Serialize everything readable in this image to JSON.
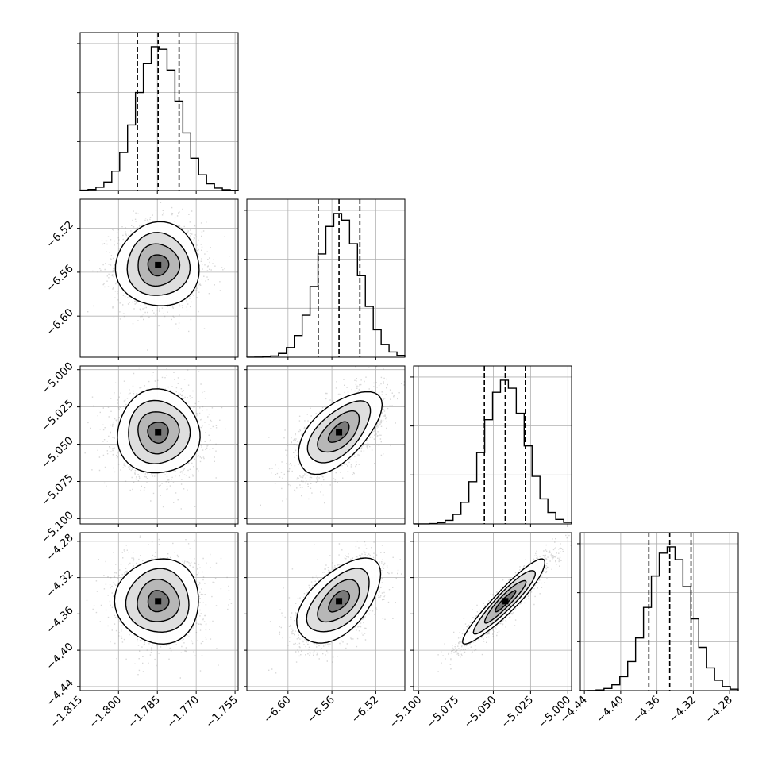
{
  "chart_data": {
    "type": "corner",
    "title": "",
    "grid": true,
    "parameters": [
      {
        "label": "",
        "range": [
          -1.8148,
          -1.7538
        ],
        "ticks": [
          "-1.815",
          "-1.800",
          "-1.785",
          "-1.770",
          "-1.755"
        ],
        "median": -1.7847,
        "q16": -1.7927,
        "q84": -1.7766,
        "std": 0.0081
      },
      {
        "label": "",
        "range": [
          -6.6375,
          -6.4935
        ],
        "ticks": [
          "-6.60",
          "-6.56",
          "-6.52"
        ],
        "median": -6.5535,
        "q16": -6.5725,
        "q84": -6.5345,
        "std": 0.019
      },
      {
        "label": "",
        "range": [
          -5.1035,
          -4.9975
        ],
        "ticks": [
          "-5.100",
          "-5.075",
          "-5.050",
          "-5.025",
          "-5.000"
        ],
        "median": -5.042,
        "q16": -5.056,
        "q84": -5.0285,
        "std": 0.0138
      },
      {
        "label": "",
        "range": [
          -4.4445,
          -4.2705
        ],
        "ticks": [
          "-4.44",
          "-4.40",
          "-4.36",
          "-4.32",
          "-4.28"
        ],
        "median": -4.346,
        "q16": -4.369,
        "q84": -4.3225,
        "std": 0.0233
      }
    ],
    "correlations": [
      [
        1.0,
        0.0,
        0.0,
        0.0
      ],
      [
        0.0,
        1.0,
        0.6,
        0.55
      ],
      [
        0.0,
        0.6,
        1.0,
        0.93
      ],
      [
        0.0,
        0.55,
        0.93,
        1.0
      ]
    ],
    "contour_levels_sigma": [
      0.5,
      1.0,
      1.5,
      2.0
    ],
    "quantiles_shown": [
      0.16,
      0.5,
      0.84
    ],
    "histogram_bins": 20
  }
}
